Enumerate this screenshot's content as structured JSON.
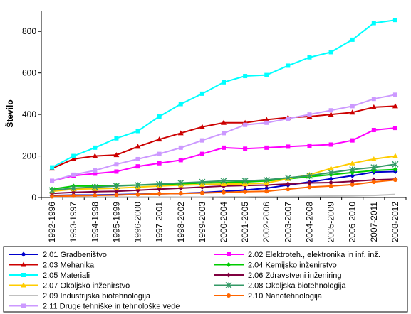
{
  "chart_data": {
    "type": "line",
    "title": "",
    "xlabel": "",
    "ylabel": "Število",
    "ylim": [
      0,
      900
    ],
    "yticks": [
      0,
      200,
      400,
      600,
      800
    ],
    "grid": false,
    "legend_placement": "bottom",
    "categories": [
      "1992-1996",
      "1993-1997",
      "1994-1998",
      "1995-1999",
      "1996-2000",
      "1997-2001",
      "1998-2002",
      "1999-2003",
      "2000-2004",
      "2001-2005",
      "2002-2006",
      "2003-2007",
      "2004-2008",
      "2005-2009",
      "2006-2010",
      "2007-2011",
      "2008-2012"
    ],
    "series": [
      {
        "name": "2.01 Gradbeništvo",
        "color": "#0000cc",
        "marker": "diamond",
        "values": [
          10,
          12,
          12,
          14,
          16,
          18,
          20,
          24,
          30,
          36,
          45,
          60,
          75,
          90,
          105,
          122,
          125
        ]
      },
      {
        "name": "2.02 Elektroteh., elektronika in inf. inž.",
        "color": "#ff00ff",
        "marker": "square",
        "values": [
          80,
          105,
          115,
          125,
          150,
          165,
          180,
          210,
          240,
          235,
          240,
          245,
          250,
          255,
          275,
          325,
          335
        ]
      },
      {
        "name": "2.03 Mehanika",
        "color": "#cc0000",
        "marker": "triangle",
        "values": [
          140,
          185,
          200,
          205,
          245,
          280,
          310,
          340,
          360,
          360,
          375,
          385,
          390,
          400,
          410,
          435,
          440
        ]
      },
      {
        "name": "2.04 Kemijsko inženirstvo",
        "color": "#00cc00",
        "marker": "diamond",
        "values": [
          40,
          55,
          55,
          58,
          60,
          62,
          65,
          70,
          72,
          75,
          80,
          90,
          100,
          110,
          120,
          130,
          135
        ]
      },
      {
        "name": "2.05 Materiali",
        "color": "#00ffff",
        "marker": "square",
        "values": [
          145,
          200,
          240,
          285,
          320,
          390,
          450,
          500,
          555,
          585,
          590,
          635,
          675,
          700,
          760,
          840,
          855
        ]
      },
      {
        "name": "2.06 Zdravstveni inženiring",
        "color": "#800040",
        "marker": "diamond",
        "values": [
          20,
          25,
          28,
          30,
          35,
          40,
          45,
          50,
          55,
          58,
          60,
          65,
          70,
          72,
          78,
          85,
          88
        ]
      },
      {
        "name": "2.07 Okoljsko inženirstvo",
        "color": "#ffcc00",
        "marker": "triangle",
        "values": [
          30,
          40,
          42,
          45,
          50,
          55,
          60,
          62,
          65,
          65,
          70,
          90,
          110,
          140,
          165,
          185,
          200
        ]
      },
      {
        "name": "2.08 Okoljska biotehnologija",
        "color": "#339966",
        "marker": "star",
        "values": [
          35,
          45,
          50,
          55,
          60,
          65,
          70,
          75,
          80,
          80,
          85,
          95,
          105,
          120,
          135,
          145,
          160
        ]
      },
      {
        "name": "2.09 Industrijska biotehnologija",
        "color": "#c0c0c0",
        "marker": "none",
        "values": [
          2,
          2,
          2,
          2,
          2,
          2,
          2,
          2,
          3,
          3,
          4,
          5,
          6,
          7,
          8,
          10,
          15
        ]
      },
      {
        "name": "2.10 Nanotehnologija",
        "color": "#ff6600",
        "marker": "circle",
        "values": [
          5,
          8,
          10,
          12,
          15,
          18,
          20,
          22,
          25,
          28,
          30,
          40,
          50,
          55,
          62,
          75,
          85
        ]
      },
      {
        "name": "2.11 Druge tehniške in tehnološke vede",
        "color": "#cc99ff",
        "marker": "square",
        "values": [
          80,
          110,
          130,
          160,
          185,
          210,
          240,
          275,
          310,
          350,
          360,
          380,
          400,
          420,
          440,
          475,
          495
        ]
      }
    ]
  }
}
